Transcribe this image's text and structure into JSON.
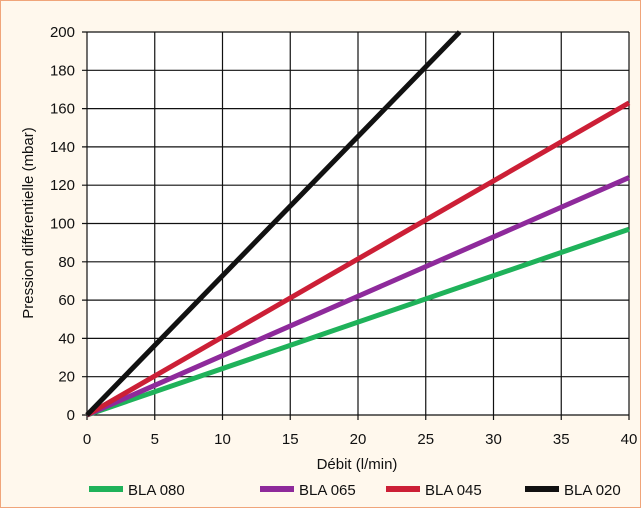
{
  "chart_data": {
    "type": "line",
    "xlabel": "Débit (l/min)",
    "ylabel": "Pression différentielle (mbar)",
    "xlim": [
      0,
      40
    ],
    "ylim": [
      0,
      200
    ],
    "x_ticks": [
      0,
      5,
      10,
      15,
      20,
      25,
      30,
      35,
      40
    ],
    "y_ticks": [
      0,
      20,
      40,
      60,
      80,
      100,
      120,
      140,
      160,
      180,
      200
    ],
    "grid": true,
    "legend_position": "bottom",
    "series": [
      {
        "name": "BLA 080",
        "color": "#1fb25a",
        "x": [
          0,
          40
        ],
        "y": [
          0,
          97
        ]
      },
      {
        "name": "BLA 065",
        "color": "#8e2a9b",
        "x": [
          0,
          40
        ],
        "y": [
          0,
          124
        ]
      },
      {
        "name": "BLA 045",
        "color": "#cc1f36",
        "x": [
          0,
          40
        ],
        "y": [
          0,
          163
        ]
      },
      {
        "name": "BLA 020",
        "color": "#111111",
        "x": [
          0,
          27.5
        ],
        "y": [
          0,
          200
        ]
      }
    ]
  }
}
